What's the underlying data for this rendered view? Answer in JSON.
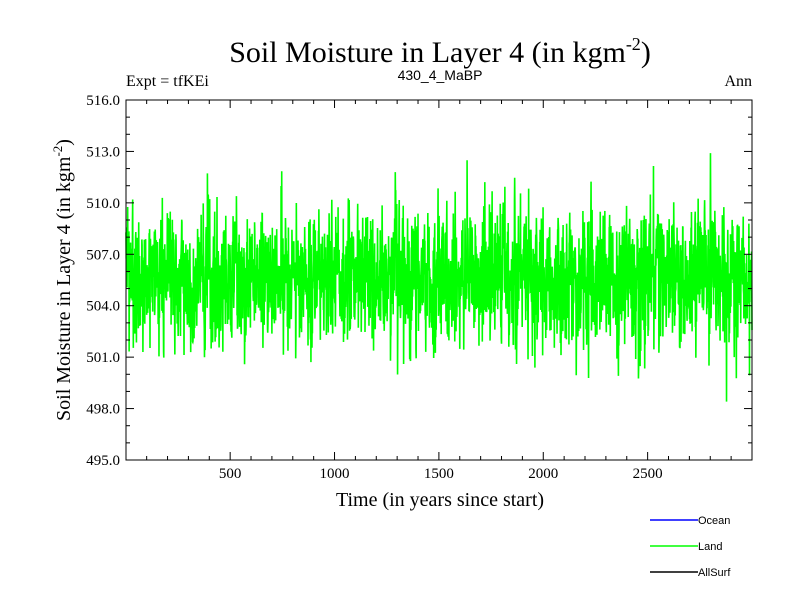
{
  "chart_data": {
    "type": "line",
    "title_main": "Soil Moisture in Layer 4 (in kgm",
    "title_sup": "-2",
    "title_close": ")",
    "left_label": "Expt = tfKEi",
    "center_label": "430_4_MaBP",
    "right_label": "Ann",
    "xlabel": "Time (in years since start)",
    "ylabel_main": "Soil Moisture in Layer 4 (in kgm",
    "ylabel_sup": "-2",
    "ylabel_close": ")",
    "xlim": [
      1,
      3000
    ],
    "ylim": [
      495.0,
      516.0
    ],
    "x_ticks": [
      500,
      1000,
      1500,
      2000,
      2500
    ],
    "x_tick_labels": [
      "500",
      "1000",
      "1500",
      "2000",
      "2500"
    ],
    "y_ticks": [
      495.0,
      498.0,
      501.0,
      504.0,
      507.0,
      510.0,
      513.0,
      516.0
    ],
    "y_tick_labels": [
      "495.0",
      "498.0",
      "501.0",
      "504.0",
      "507.0",
      "510.0",
      "513.0",
      "516.0"
    ],
    "grid": false,
    "legend_position": "bottom-right",
    "series": [
      {
        "name": "Ocean",
        "color": "#0000ff",
        "values": []
      },
      {
        "name": "Land",
        "color": "#00ff00",
        "mean": 505.6,
        "stdev": 2.0,
        "min": 497.0,
        "max": 513.7,
        "values": []
      },
      {
        "name": "AllSurf",
        "color": "#000000",
        "values": []
      }
    ]
  }
}
